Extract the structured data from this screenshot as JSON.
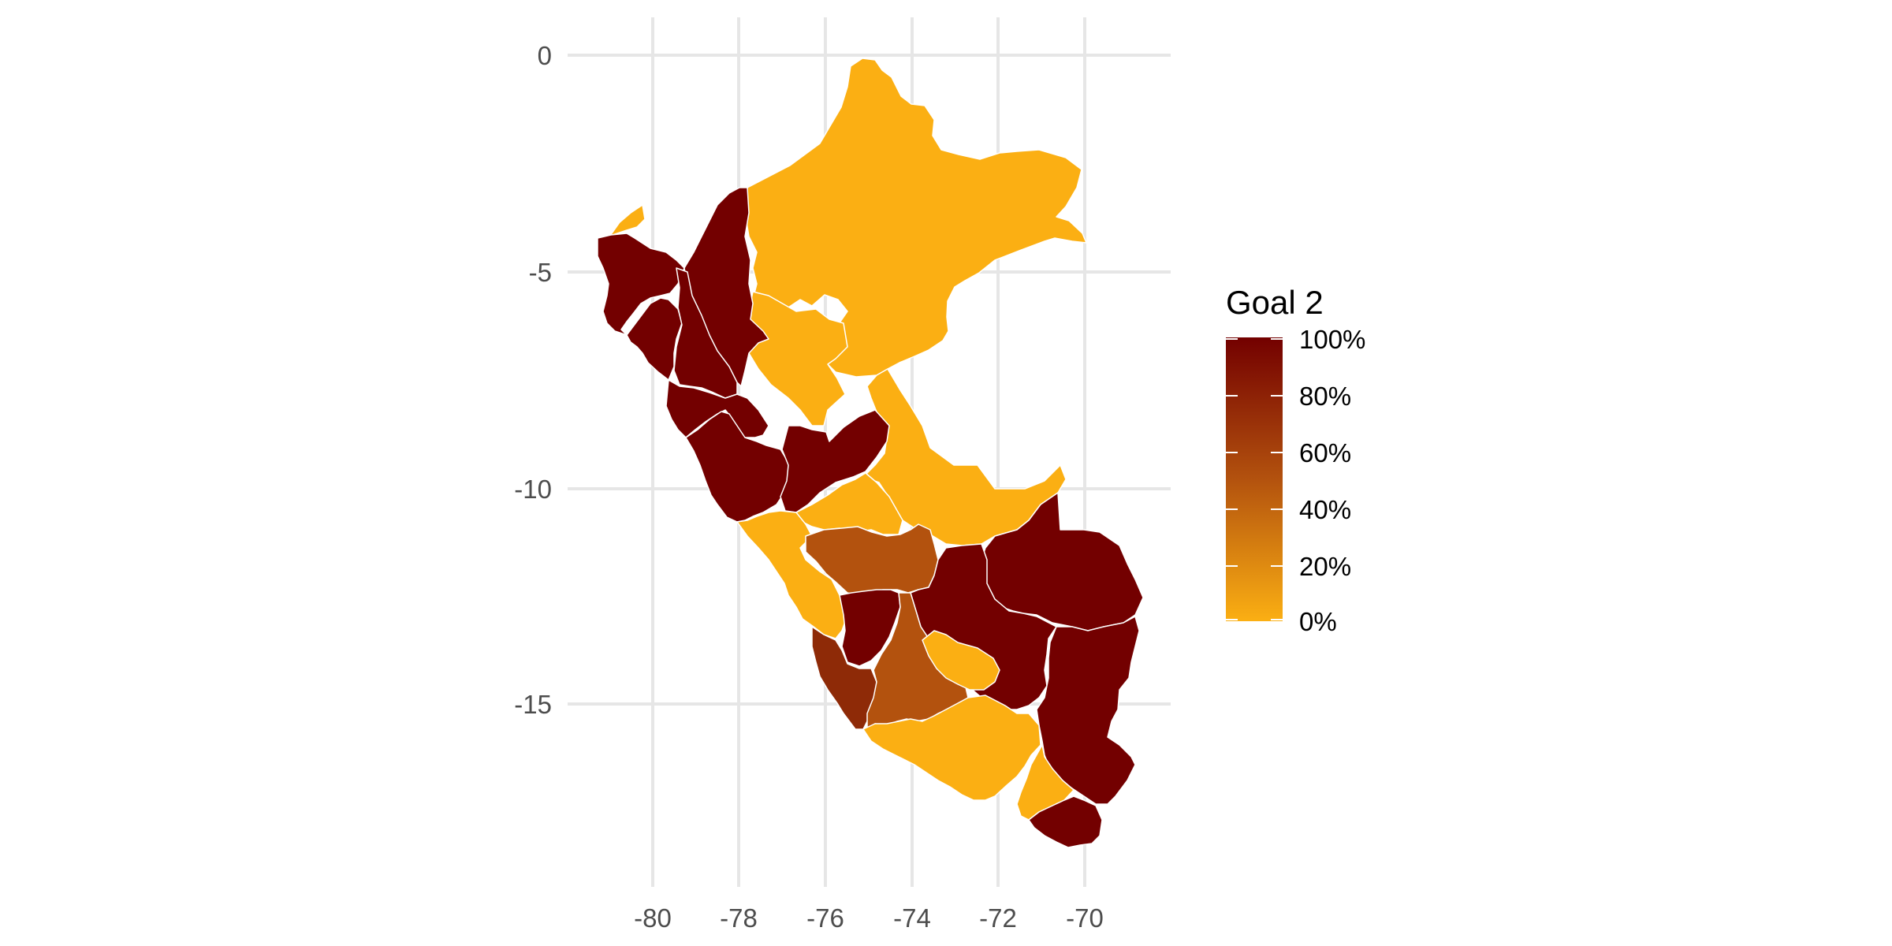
{
  "chart_data": {
    "type": "choropleth",
    "title": "",
    "xlabel": "",
    "ylabel": "",
    "x_axis": {
      "ticks": [
        -80,
        -78,
        -76,
        -74,
        -72,
        -70
      ],
      "labels": [
        "-80",
        "-78",
        "-76",
        "-74",
        "-72",
        "-70"
      ],
      "range": [
        -81.5,
        -68.0
      ]
    },
    "y_axis": {
      "ticks": [
        0,
        -5,
        -10,
        -15
      ],
      "labels": [
        "0",
        "-5",
        "-10",
        "-15"
      ],
      "range": [
        -19.0,
        1.0
      ]
    },
    "grid": true,
    "legend": {
      "title": "Goal 2",
      "placement": "right",
      "labels": [
        "100%",
        "80%",
        "60%",
        "40%",
        "20%",
        "0%"
      ],
      "values": [
        1.0,
        0.8,
        0.6,
        0.4,
        0.2,
        0.0
      ],
      "colors": {
        "low": "#FBAF13",
        "mid": "#B3520E",
        "high": "#730000"
      }
    },
    "regions": [
      {
        "id": "tumbes",
        "goal_2": 0.0,
        "color": "#FBAF13"
      },
      {
        "id": "loreto",
        "goal_2": 0.0,
        "color": "#FBAF13"
      },
      {
        "id": "amazonas",
        "goal_2": 1.0,
        "color": "#730000"
      },
      {
        "id": "piura",
        "goal_2": 1.0,
        "color": "#730000"
      },
      {
        "id": "lambayeque",
        "goal_2": 1.0,
        "color": "#730000"
      },
      {
        "id": "cajamarca",
        "goal_2": 1.0,
        "color": "#730000"
      },
      {
        "id": "san-martin",
        "goal_2": 0.0,
        "color": "#FBAF13"
      },
      {
        "id": "la-libertad",
        "goal_2": 1.0,
        "color": "#730000"
      },
      {
        "id": "ancash",
        "goal_2": 1.0,
        "color": "#730000"
      },
      {
        "id": "huanuco",
        "goal_2": 1.0,
        "color": "#730000"
      },
      {
        "id": "ucayali",
        "goal_2": 0.0,
        "color": "#FBAF13"
      },
      {
        "id": "pasco",
        "goal_2": 0.0,
        "color": "#FBAF13"
      },
      {
        "id": "lima",
        "goal_2": 0.0,
        "color": "#FBAF13"
      },
      {
        "id": "junin",
        "goal_2": 0.5,
        "color": "#B3520E"
      },
      {
        "id": "madre-de-dios",
        "goal_2": 1.0,
        "color": "#730000"
      },
      {
        "id": "cusco",
        "goal_2": 1.0,
        "color": "#730000"
      },
      {
        "id": "huancavelica",
        "goal_2": 1.0,
        "color": "#730000"
      },
      {
        "id": "ica",
        "goal_2": 0.7,
        "color": "#8E2A07"
      },
      {
        "id": "ayacucho",
        "goal_2": 0.5,
        "color": "#B3520E"
      },
      {
        "id": "apurimac",
        "goal_2": 0.0,
        "color": "#FBAF13"
      },
      {
        "id": "arequipa",
        "goal_2": 0.0,
        "color": "#FBAF13"
      },
      {
        "id": "puno",
        "goal_2": 1.0,
        "color": "#730000"
      },
      {
        "id": "moquegua",
        "goal_2": 0.0,
        "color": "#FBAF13"
      },
      {
        "id": "tacna",
        "goal_2": 1.0,
        "color": "#730000"
      }
    ]
  }
}
